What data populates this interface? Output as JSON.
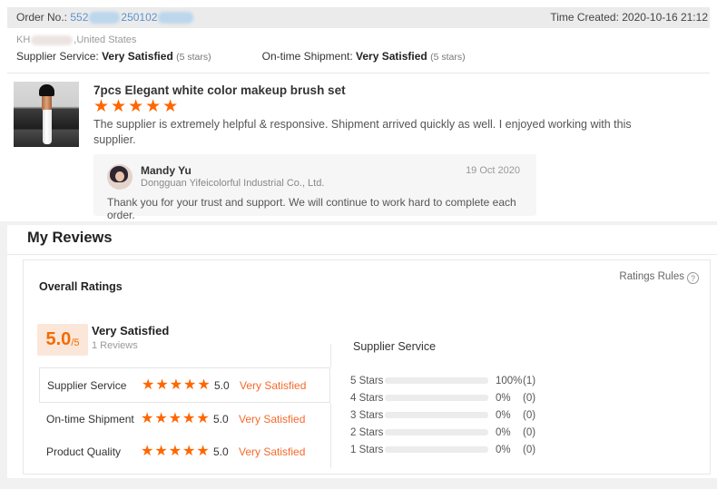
{
  "order_header": {
    "order_label": "Order No.:",
    "order_number_part1": "552",
    "order_number_part2": "250102",
    "time_created": "Time Created: 2020-10-16 21:12"
  },
  "buyer": {
    "name_visible": "KH",
    "location": ",United States",
    "ratings": [
      {
        "label": "Supplier Service:",
        "value": "Very Satisfied",
        "note": "(5 stars)"
      },
      {
        "label": "On-time Shipment:",
        "value": "Very Satisfied",
        "note": "(5 stars)"
      }
    ]
  },
  "review": {
    "product_title": "7pcs Elegant white color makeup brush set",
    "stars_glyph": "★★★★★",
    "text": "The supplier is extremely helpful & responsive. Shipment arrived quickly as well.  I enjoyed working with this supplier.",
    "reply": {
      "author": "Mandy Yu",
      "company": "Dongguan Yifeicolorful Industrial Co., Ltd.",
      "date": "19 Oct 2020",
      "text": "Thank you for your trust and support. We will continue to work hard to complete each order."
    }
  },
  "my_reviews": {
    "title": "My Reviews",
    "overall_ratings_label": "Overall Ratings",
    "ratings_rules_label": "Ratings Rules",
    "ratings_rules_icon": "?",
    "score": {
      "value": "5.0",
      "denominator": "/5",
      "label": "Very Satisfied",
      "reviews_count": "1 Reviews"
    },
    "categories": [
      {
        "label": "Supplier Service",
        "stars_glyph": "★★★★★",
        "score": "5.0",
        "status": "Very Satisfied"
      },
      {
        "label": "On-time Shipment",
        "stars_glyph": "★★★★★",
        "score": "5.0",
        "status": "Very Satisfied"
      },
      {
        "label": "Product Quality",
        "stars_glyph": "★★★★★",
        "score": "5.0",
        "status": "Very Satisfied"
      }
    ],
    "distribution": {
      "title": "Supplier Service",
      "rows": [
        {
          "label": "5 Stars",
          "percent": "100%",
          "count": "(1)",
          "value": 100
        },
        {
          "label": "4 Stars",
          "percent": "0%",
          "count": "(0)",
          "value": 0
        },
        {
          "label": "3 Stars",
          "percent": "0%",
          "count": "(0)",
          "value": 0
        },
        {
          "label": "2 Stars",
          "percent": "0%",
          "count": "(0)",
          "value": 0
        },
        {
          "label": "1 Stars",
          "percent": "0%",
          "count": "(0)",
          "value": 0
        }
      ]
    }
  },
  "colors": {
    "accent_orange": "#f56a00",
    "star_orange": "#ff6600",
    "bar_orange": "#f57c00",
    "score_box_bg": "#fbe7da",
    "order_bar_bg": "#ebebeb",
    "reply_box_bg": "#f6f6f6",
    "order_number_blue": "#5b92cc"
  }
}
